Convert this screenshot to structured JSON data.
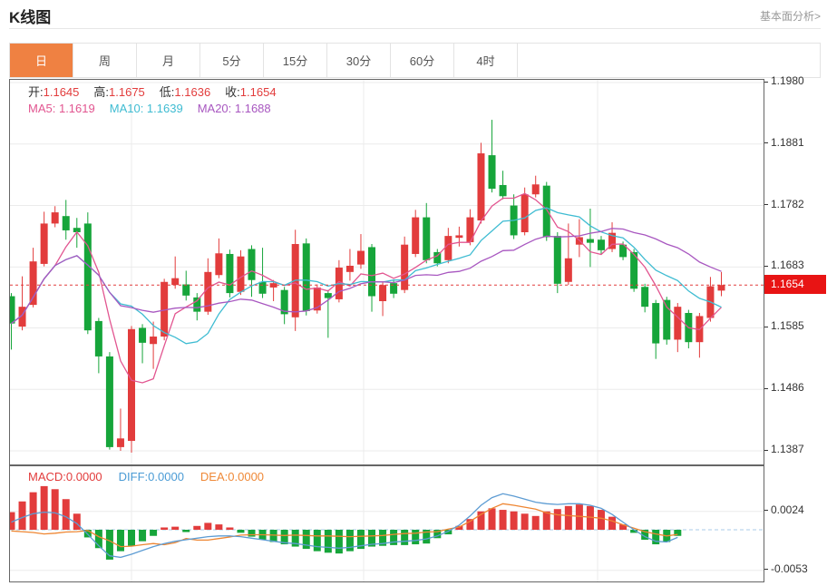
{
  "header": {
    "title": "K线图",
    "link": "基本面分析>"
  },
  "tabs": {
    "items": [
      "日",
      "周",
      "月",
      "5分",
      "15分",
      "30分",
      "60分",
      "4时"
    ],
    "active": "日"
  },
  "info": {
    "ohlc": [
      {
        "label": "开:",
        "value": "1.1645"
      },
      {
        "label": "高:",
        "value": "1.1675"
      },
      {
        "label": "低:",
        "value": "1.1636"
      },
      {
        "label": "收:",
        "value": "1.1654"
      }
    ],
    "ma": [
      {
        "label": "MA5:",
        "value": "1.1619",
        "color": "#e25590"
      },
      {
        "label": "MA10:",
        "value": "1.1639",
        "color": "#3fbcd2"
      },
      {
        "label": "MA20:",
        "value": "1.1688",
        "color": "#a857c0"
      }
    ]
  },
  "macd_info": [
    {
      "label": "MACD:",
      "value": "0.0000",
      "color": "#e23c3c"
    },
    {
      "label": "DIFF:",
      "value": "0.0000",
      "color": "#4a9bd5"
    },
    {
      "label": "DEA:",
      "value": "0.0000",
      "color": "#ef8836"
    }
  ],
  "colors": {
    "up": "#e23c3c",
    "down": "#16a53a",
    "ma5": "#e25590",
    "ma10": "#3fbcd2",
    "ma20": "#a857c0",
    "diff": "#5d9cd3",
    "dea": "#ee8632",
    "grid": "#ebebeb",
    "zero_line": "#a9cbe9",
    "price_line": "#e23c3c",
    "price_tag_bg": "#e81414",
    "accent_tab": "#ef8142"
  },
  "chart_data": {
    "type": "candlestick+macd",
    "title": "K线图",
    "legend_position": "top-left-overlay",
    "grid": true,
    "x_gridlines": [
      144,
      400,
      658
    ],
    "main": {
      "axis_ticks": [
        1.198,
        1.1881,
        1.1782,
        1.1683,
        1.1585,
        1.1486,
        1.1387
      ],
      "ylim": [
        1.1365,
        1.1984
      ],
      "current_price": 1.1654,
      "ma_periods": [
        5,
        10,
        20
      ],
      "candles_format": [
        "open",
        "high",
        "low",
        "close"
      ],
      "candles": [
        [
          1.1636,
          1.1641,
          1.155,
          1.1592
        ],
        [
          1.1587,
          1.1668,
          1.1581,
          1.1619
        ],
        [
          1.1622,
          1.1714,
          1.1618,
          1.1692
        ],
        [
          1.1688,
          1.1772,
          1.1684,
          1.1753
        ],
        [
          1.1753,
          1.1781,
          1.1747,
          1.1771
        ],
        [
          1.1765,
          1.1791,
          1.1727,
          1.1742
        ],
        [
          1.1746,
          1.1762,
          1.1714,
          1.1739
        ],
        [
          1.1753,
          1.1771,
          1.1575,
          1.1581
        ],
        [
          1.1596,
          1.1601,
          1.1512,
          1.1539
        ],
        [
          1.1539,
          1.1546,
          1.1389,
          1.1393
        ],
        [
          1.1393,
          1.1455,
          1.1387,
          1.1407
        ],
        [
          1.1403,
          1.1588,
          1.1384,
          1.1583
        ],
        [
          1.1585,
          1.1591,
          1.1528,
          1.1561
        ],
        [
          1.1559,
          1.1595,
          1.1519,
          1.1571
        ],
        [
          1.1571,
          1.1664,
          1.1565,
          1.1659
        ],
        [
          1.1654,
          1.17,
          1.1648,
          1.1665
        ],
        [
          1.1655,
          1.1677,
          1.1629,
          1.1637
        ],
        [
          1.1634,
          1.1641,
          1.1597,
          1.1611
        ],
        [
          1.1611,
          1.1697,
          1.1606,
          1.1675
        ],
        [
          1.167,
          1.1729,
          1.1665,
          1.1705
        ],
        [
          1.1704,
          1.1711,
          1.1634,
          1.1641
        ],
        [
          1.1643,
          1.171,
          1.1638,
          1.17
        ],
        [
          1.1712,
          1.1718,
          1.1635,
          1.1662
        ],
        [
          1.1659,
          1.1714,
          1.1633,
          1.164
        ],
        [
          1.165,
          1.1662,
          1.1628,
          1.1657
        ],
        [
          1.1646,
          1.1651,
          1.1591,
          1.1607
        ],
        [
          1.1602,
          1.1743,
          1.158,
          1.172
        ],
        [
          1.1721,
          1.1729,
          1.1605,
          1.1612
        ],
        [
          1.1613,
          1.1655,
          1.1608,
          1.165
        ],
        [
          1.1641,
          1.1646,
          1.1569,
          1.1633
        ],
        [
          1.1631,
          1.1694,
          1.1626,
          1.1682
        ],
        [
          1.1675,
          1.1712,
          1.1661,
          1.1685
        ],
        [
          1.1687,
          1.1736,
          1.168,
          1.1709
        ],
        [
          1.1715,
          1.172,
          1.1611,
          1.1636
        ],
        [
          1.1628,
          1.1659,
          1.1604,
          1.1654
        ],
        [
          1.1657,
          1.1661,
          1.1633,
          1.164
        ],
        [
          1.1646,
          1.1732,
          1.1641,
          1.1719
        ],
        [
          1.1704,
          1.1775,
          1.1699,
          1.1763
        ],
        [
          1.1763,
          1.1786,
          1.1689,
          1.1694
        ],
        [
          1.1707,
          1.1712,
          1.1684,
          1.1689
        ],
        [
          1.1694,
          1.1746,
          1.1689,
          1.1733
        ],
        [
          1.173,
          1.1748,
          1.1716,
          1.1734
        ],
        [
          1.1723,
          1.1776,
          1.1718,
          1.1763
        ],
        [
          1.1758,
          1.1883,
          1.1753,
          1.1866
        ],
        [
          1.1863,
          1.192,
          1.1803,
          1.1809
        ],
        [
          1.1815,
          1.1838,
          1.1792,
          1.1797
        ],
        [
          1.1782,
          1.18,
          1.1728,
          1.1734
        ],
        [
          1.1739,
          1.1811,
          1.1734,
          1.18
        ],
        [
          1.18,
          1.183,
          1.1795,
          1.1816
        ],
        [
          1.1814,
          1.182,
          1.1725,
          1.1731
        ],
        [
          1.1733,
          1.1739,
          1.1641,
          1.1656
        ],
        [
          1.1659,
          1.1753,
          1.1654,
          1.1697
        ],
        [
          1.1719,
          1.176,
          1.1699,
          1.1731
        ],
        [
          1.1728,
          1.1777,
          1.1683,
          1.1722
        ],
        [
          1.1727,
          1.1733,
          1.1704,
          1.171
        ],
        [
          1.1712,
          1.1755,
          1.1707,
          1.1738
        ],
        [
          1.1719,
          1.1724,
          1.1694,
          1.1699
        ],
        [
          1.1707,
          1.1712,
          1.1643,
          1.1648
        ],
        [
          1.1651,
          1.1656,
          1.161,
          1.1619
        ],
        [
          1.1625,
          1.163,
          1.1535,
          1.156
        ],
        [
          1.163,
          1.1635,
          1.1558,
          1.1566
        ],
        [
          1.1566,
          1.1625,
          1.1546,
          1.1619
        ],
        [
          1.1609,
          1.1614,
          1.1552,
          1.1562
        ],
        [
          1.1562,
          1.1609,
          1.1537,
          1.1604
        ],
        [
          1.1601,
          1.1667,
          1.1595,
          1.1652
        ],
        [
          1.1645,
          1.1675,
          1.1636,
          1.1654
        ]
      ]
    },
    "macd": {
      "axis_ticks": [
        0.0024,
        -0.0053
      ],
      "readout": {
        "macd": 0.0,
        "diff": 0.0,
        "dea": 0.0
      },
      "bars": [
        0.0023,
        0.0037,
        0.0049,
        0.0057,
        0.0053,
        0.004,
        0.0021,
        -0.001,
        -0.0024,
        -0.0039,
        -0.0028,
        -0.0021,
        -0.0015,
        -0.0008,
        0.0003,
        0.0004,
        -0.0003,
        0.0005,
        0.0009,
        0.0007,
        0.0003,
        -0.0004,
        -0.0009,
        -0.0013,
        -0.0016,
        -0.0019,
        -0.0022,
        -0.0025,
        -0.0028,
        -0.003,
        -0.0031,
        -0.0028,
        -0.0025,
        -0.0022,
        -0.0021,
        -0.002,
        -0.002,
        -0.0019,
        -0.0018,
        -0.0011,
        -0.0006,
        0.0005,
        0.0014,
        0.0024,
        0.0028,
        0.0026,
        0.0024,
        0.0021,
        0.0018,
        0.0024,
        0.0027,
        0.0031,
        0.0033,
        0.0031,
        0.0026,
        0.0017,
        0.0007,
        -0.0004,
        -0.0013,
        -0.0019,
        -0.0016,
        -0.0008,
        0,
        0,
        0,
        0
      ],
      "diff": [
        0.001,
        0.0016,
        0.0021,
        0.0023,
        0.0022,
        0.0017,
        0.0008,
        -0.0006,
        -0.0021,
        -0.0034,
        -0.0036,
        -0.0032,
        -0.0027,
        -0.0022,
        -0.0018,
        -0.0015,
        -0.0013,
        -0.0011,
        -0.0009,
        -0.0008,
        -0.0008,
        -0.0009,
        -0.0011,
        -0.0013,
        -0.0015,
        -0.0017,
        -0.0018,
        -0.002,
        -0.0022,
        -0.0023,
        -0.0024,
        -0.0023,
        -0.0021,
        -0.0019,
        -0.0018,
        -0.0016,
        -0.0015,
        -0.0014,
        -0.0012,
        -0.0008,
        -0.0002,
        0.0006,
        0.0018,
        0.0032,
        0.0042,
        0.0047,
        0.0044,
        0.004,
        0.0036,
        0.0034,
        0.0033,
        0.0034,
        0.0034,
        0.0032,
        0.0028,
        0.002,
        0.001,
        0.0,
        -0.0009,
        -0.0015,
        -0.0016,
        -0.001,
        null,
        null,
        null,
        null
      ]
    }
  }
}
